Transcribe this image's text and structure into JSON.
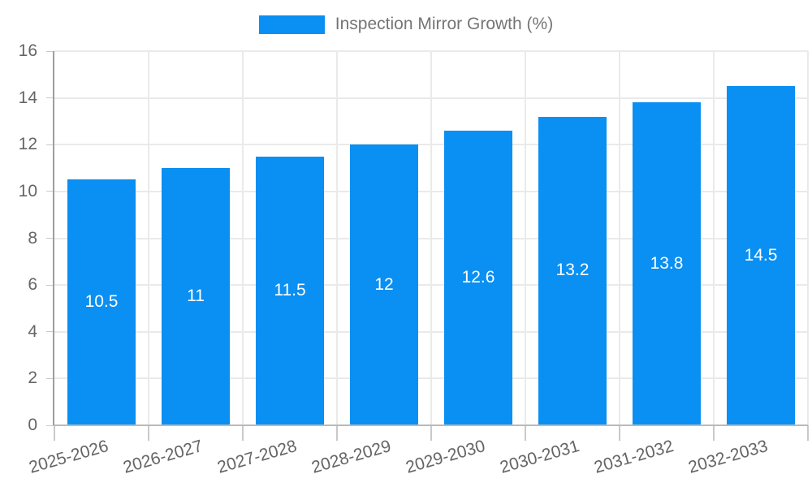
{
  "chart_data": {
    "type": "bar",
    "title": "Inspection Mirror Growth (%)",
    "series_name": "Inspection Mirror Growth (%)",
    "categories": [
      "2025-2026",
      "2026-2027",
      "2027-2028",
      "2028-2029",
      "2029-2030",
      "2030-2031",
      "2031-2032",
      "2032-2033"
    ],
    "values": [
      10.5,
      11,
      11.5,
      12,
      12.6,
      13.2,
      13.8,
      14.5
    ],
    "value_labels": [
      "10.5",
      "11",
      "11.5",
      "12",
      "12.6",
      "13.2",
      "13.8",
      "14.5"
    ],
    "xlabel": "",
    "ylabel": "",
    "ylim": [
      0,
      16
    ],
    "yticks": [
      0,
      2,
      4,
      6,
      8,
      10,
      12,
      14,
      16
    ],
    "grid": true,
    "legend_position": "top",
    "x_label_rotation_deg": -16,
    "colors": {
      "bar": "#0a8ff2",
      "value_label": "#ffffff",
      "tick_label": "#656565",
      "legend_text": "#757575",
      "gridline": "#eaeaea",
      "axis_y": "#9e9e9e",
      "axis_x": "#b9b9b9",
      "tick_mark": "#c9c9c9",
      "background": "#ffffff"
    }
  }
}
